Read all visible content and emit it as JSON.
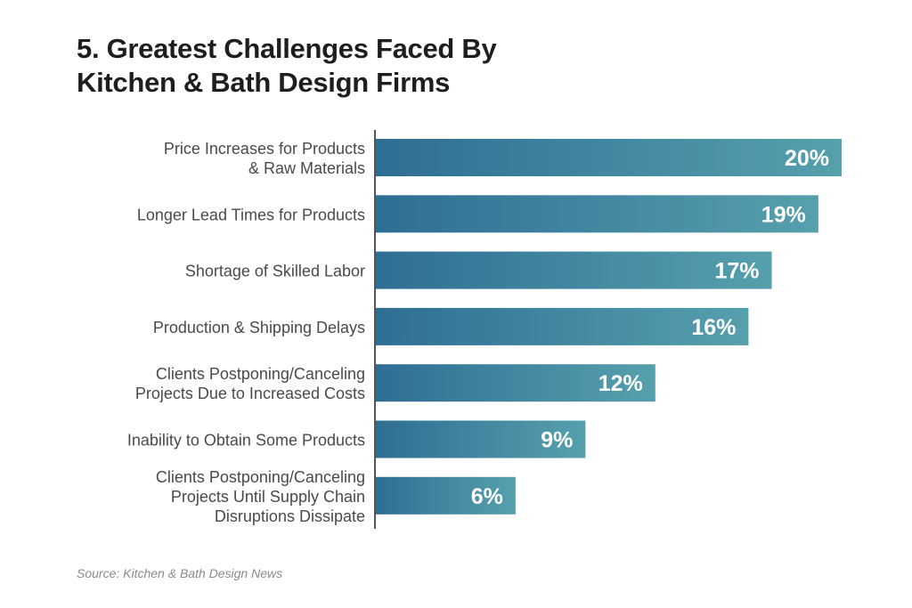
{
  "title": {
    "line1": "5. Greatest Challenges Faced By",
    "line2": "Kitchen & Bath Design Firms"
  },
  "source": "Source: Kitchen & Bath Design News",
  "colors": {
    "bar_start": "#2e6e93",
    "bar_end": "#56a0ad",
    "label": "#4a4a4a",
    "axis": "#555555",
    "value_label": "#ffffff"
  },
  "chart_data": {
    "type": "bar",
    "orientation": "horizontal",
    "unit": "%",
    "categories": [
      [
        "Price Increases for Products",
        "& Raw Materials"
      ],
      [
        "Longer Lead Times for Products"
      ],
      [
        "Shortage of Skilled Labor"
      ],
      [
        "Production & Shipping Delays"
      ],
      [
        "Clients Postponing/Canceling",
        "Projects Due to Increased Costs"
      ],
      [
        "Inability to Obtain Some Products"
      ],
      [
        "Clients Postponing/Canceling",
        "Projects Until Supply Chain",
        "Disruptions Dissipate"
      ]
    ],
    "values": [
      20,
      19,
      17,
      16,
      12,
      9,
      6
    ],
    "value_labels": [
      "20%",
      "19%",
      "17%",
      "16%",
      "12%",
      "9%",
      "6%"
    ],
    "xlim": [
      0,
      20
    ],
    "grid": false,
    "legend": "none"
  }
}
